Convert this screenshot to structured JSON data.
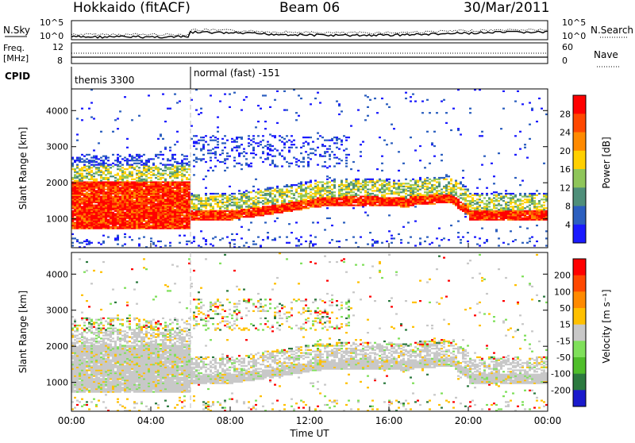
{
  "header": {
    "station": "Hokkaido (fitACF)",
    "beam": "Beam 06",
    "date": "30/Mar/2011"
  },
  "top_panels": {
    "nsky_label": "N.Sky",
    "nsearch_label": "N.Search",
    "nsky_ticks": [
      "10^5",
      "10^0"
    ],
    "freq_label_1": "Freq.",
    "freq_label_2": "[MHz]",
    "freq_ticks": [
      "12",
      "8"
    ],
    "nave_ticks": [
      "60",
      "0"
    ],
    "nave_label": "Nave",
    "cpid_label": "CPID",
    "cpid_1": "themis 3300",
    "cpid_2": "normal (fast) -151"
  },
  "chart_data": [
    {
      "type": "heatmap",
      "name": "power",
      "ylabel": "Slant Range [km]",
      "xlabel": "",
      "yticks": [
        "1000",
        "2000",
        "3000",
        "4000"
      ],
      "ylim": [
        200,
        4600
      ],
      "xlim": [
        "00:00",
        "24:00"
      ],
      "colorbar": {
        "label": "Power [dB]",
        "ticks": [
          "4",
          "8",
          "12",
          "16",
          "20",
          "24",
          "28"
        ],
        "colors": [
          "#1a1aff",
          "#2c5fbf",
          "#4f8f7a",
          "#8fc65a",
          "#ffd000",
          "#ff8a00",
          "#ff4800",
          "#ff0000"
        ]
      }
    },
    {
      "type": "heatmap",
      "name": "velocity",
      "ylabel": "Slant Range [km]",
      "xlabel": "Time UT",
      "yticks": [
        "1000",
        "2000",
        "3000",
        "4000"
      ],
      "ylim": [
        200,
        4600
      ],
      "xlim": [
        "00:00",
        "24:00"
      ],
      "xticks": [
        "00:00",
        "04:00",
        "08:00",
        "12:00",
        "16:00",
        "20:00",
        "00:00"
      ],
      "colorbar": {
        "label": "Velocity [m s⁻¹]",
        "ticks": [
          "200",
          "100",
          "50",
          "15",
          "-15",
          "-50",
          "-100",
          "-200"
        ],
        "colors": [
          "#1a1acc",
          "#2c7a3f",
          "#4fbe2a",
          "#7fe05a",
          "#c8c8c8",
          "#ffc000",
          "#ff8a00",
          "#ff4800",
          "#ff0000"
        ]
      }
    }
  ]
}
